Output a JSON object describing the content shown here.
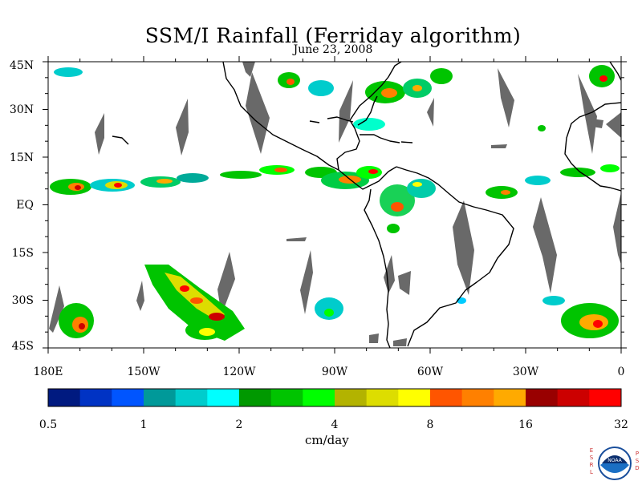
{
  "title": "SSM/I Rainfall (Ferriday algorithm)",
  "subtitle": "June 23, 2008",
  "lat_labels": [
    "45N",
    "30N",
    "15N",
    "EQ",
    "15S",
    "30S",
    "45S"
  ],
  "lon_labels": [
    "180E",
    "150W",
    "120W",
    "90W",
    "60W",
    "30W",
    "0"
  ],
  "colorbar": {
    "units": "cm/day",
    "tick_labels": [
      "0.5",
      "1",
      "2",
      "4",
      "8",
      "16",
      "32"
    ],
    "colors": [
      "#001a80",
      "#0033c4",
      "#0055ff",
      "#009999",
      "#00cccc",
      "#00ffff",
      "#009900",
      "#00c400",
      "#00ff00",
      "#b3b300",
      "#dddd00",
      "#ffff00",
      "#ff5500",
      "#ff8000",
      "#ffaa00",
      "#990000",
      "#cc0000",
      "#ff0000"
    ]
  },
  "colors": {
    "missing_data": "#696969",
    "coastline": "#000000",
    "background": "#ffffff"
  },
  "logo": {
    "left_letters": [
      "E",
      "S",
      "R",
      "L"
    ],
    "right_letters": [
      "P",
      "S",
      "D"
    ],
    "emblem_text": "NOAA"
  }
}
